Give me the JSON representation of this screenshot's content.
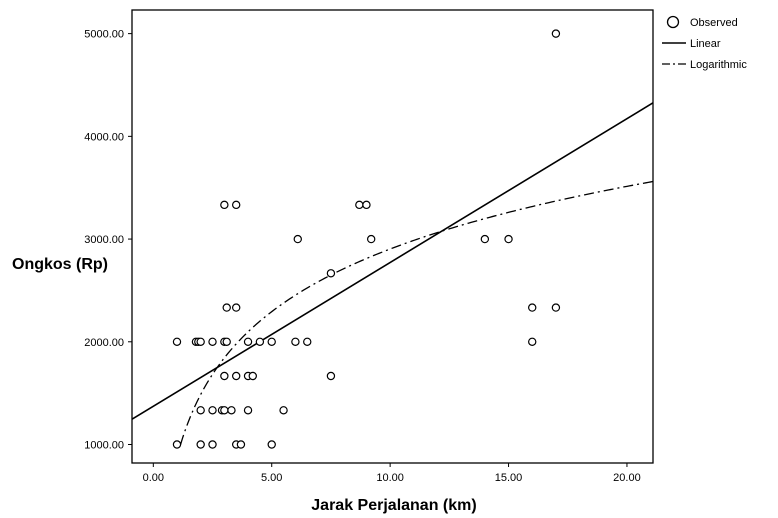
{
  "chart_data": {
    "type": "scatter",
    "xlabel": "Jarak Perjalanan (km)",
    "ylabel": "Ongkos (Rp)",
    "xlim": [
      -0.9,
      21.1
    ],
    "ylim": [
      820,
      5230
    ],
    "x_ticks": [
      0,
      5,
      10,
      15,
      20
    ],
    "x_tick_labels": [
      "0.00",
      "5.00",
      "10.00",
      "15.00",
      "20.00"
    ],
    "y_ticks": [
      1000,
      2000,
      3000,
      4000,
      5000
    ],
    "y_tick_labels": [
      "1000.00",
      "2000.00",
      "3000.00",
      "4000.00",
      "5000.00"
    ],
    "grid": false,
    "legend_position": "outside-top-right",
    "series": [
      {
        "name": "Observed",
        "kind": "scatter",
        "points": [
          [
            1.0,
            1000
          ],
          [
            2.0,
            1000
          ],
          [
            2.5,
            1000
          ],
          [
            3.5,
            1000
          ],
          [
            3.7,
            1000
          ],
          [
            5.0,
            1000
          ],
          [
            2.0,
            1333
          ],
          [
            2.5,
            1333
          ],
          [
            2.9,
            1333
          ],
          [
            3.0,
            1333
          ],
          [
            3.3,
            1333
          ],
          [
            4.0,
            1333
          ],
          [
            5.5,
            1333
          ],
          [
            3.0,
            1667
          ],
          [
            3.5,
            1667
          ],
          [
            4.0,
            1667
          ],
          [
            4.2,
            1667
          ],
          [
            7.5,
            1667
          ],
          [
            1.0,
            2000
          ],
          [
            1.8,
            2000
          ],
          [
            1.9,
            2000
          ],
          [
            2.0,
            2000
          ],
          [
            2.5,
            2000
          ],
          [
            3.0,
            2000
          ],
          [
            3.1,
            2000
          ],
          [
            4.0,
            2000
          ],
          [
            4.5,
            2000
          ],
          [
            5.0,
            2000
          ],
          [
            6.0,
            2000
          ],
          [
            6.5,
            2000
          ],
          [
            16.0,
            2000
          ],
          [
            3.1,
            2333
          ],
          [
            3.5,
            2333
          ],
          [
            16.0,
            2333
          ],
          [
            17.0,
            2333
          ],
          [
            7.5,
            2667
          ],
          [
            6.1,
            3000
          ],
          [
            9.2,
            3000
          ],
          [
            14.0,
            3000
          ],
          [
            15.0,
            3000
          ],
          [
            3.0,
            3333
          ],
          [
            3.5,
            3333
          ],
          [
            8.7,
            3333
          ],
          [
            9.0,
            3333
          ],
          [
            17.0,
            5000
          ]
        ]
      },
      {
        "name": "Linear",
        "kind": "line",
        "style": "solid",
        "intercept": 1372,
        "slope": 140
      },
      {
        "name": "Logarithmic",
        "kind": "line",
        "style": "dash-dot",
        "intercept": 877,
        "coefficient": 880,
        "x_start": 1.15
      }
    ]
  }
}
